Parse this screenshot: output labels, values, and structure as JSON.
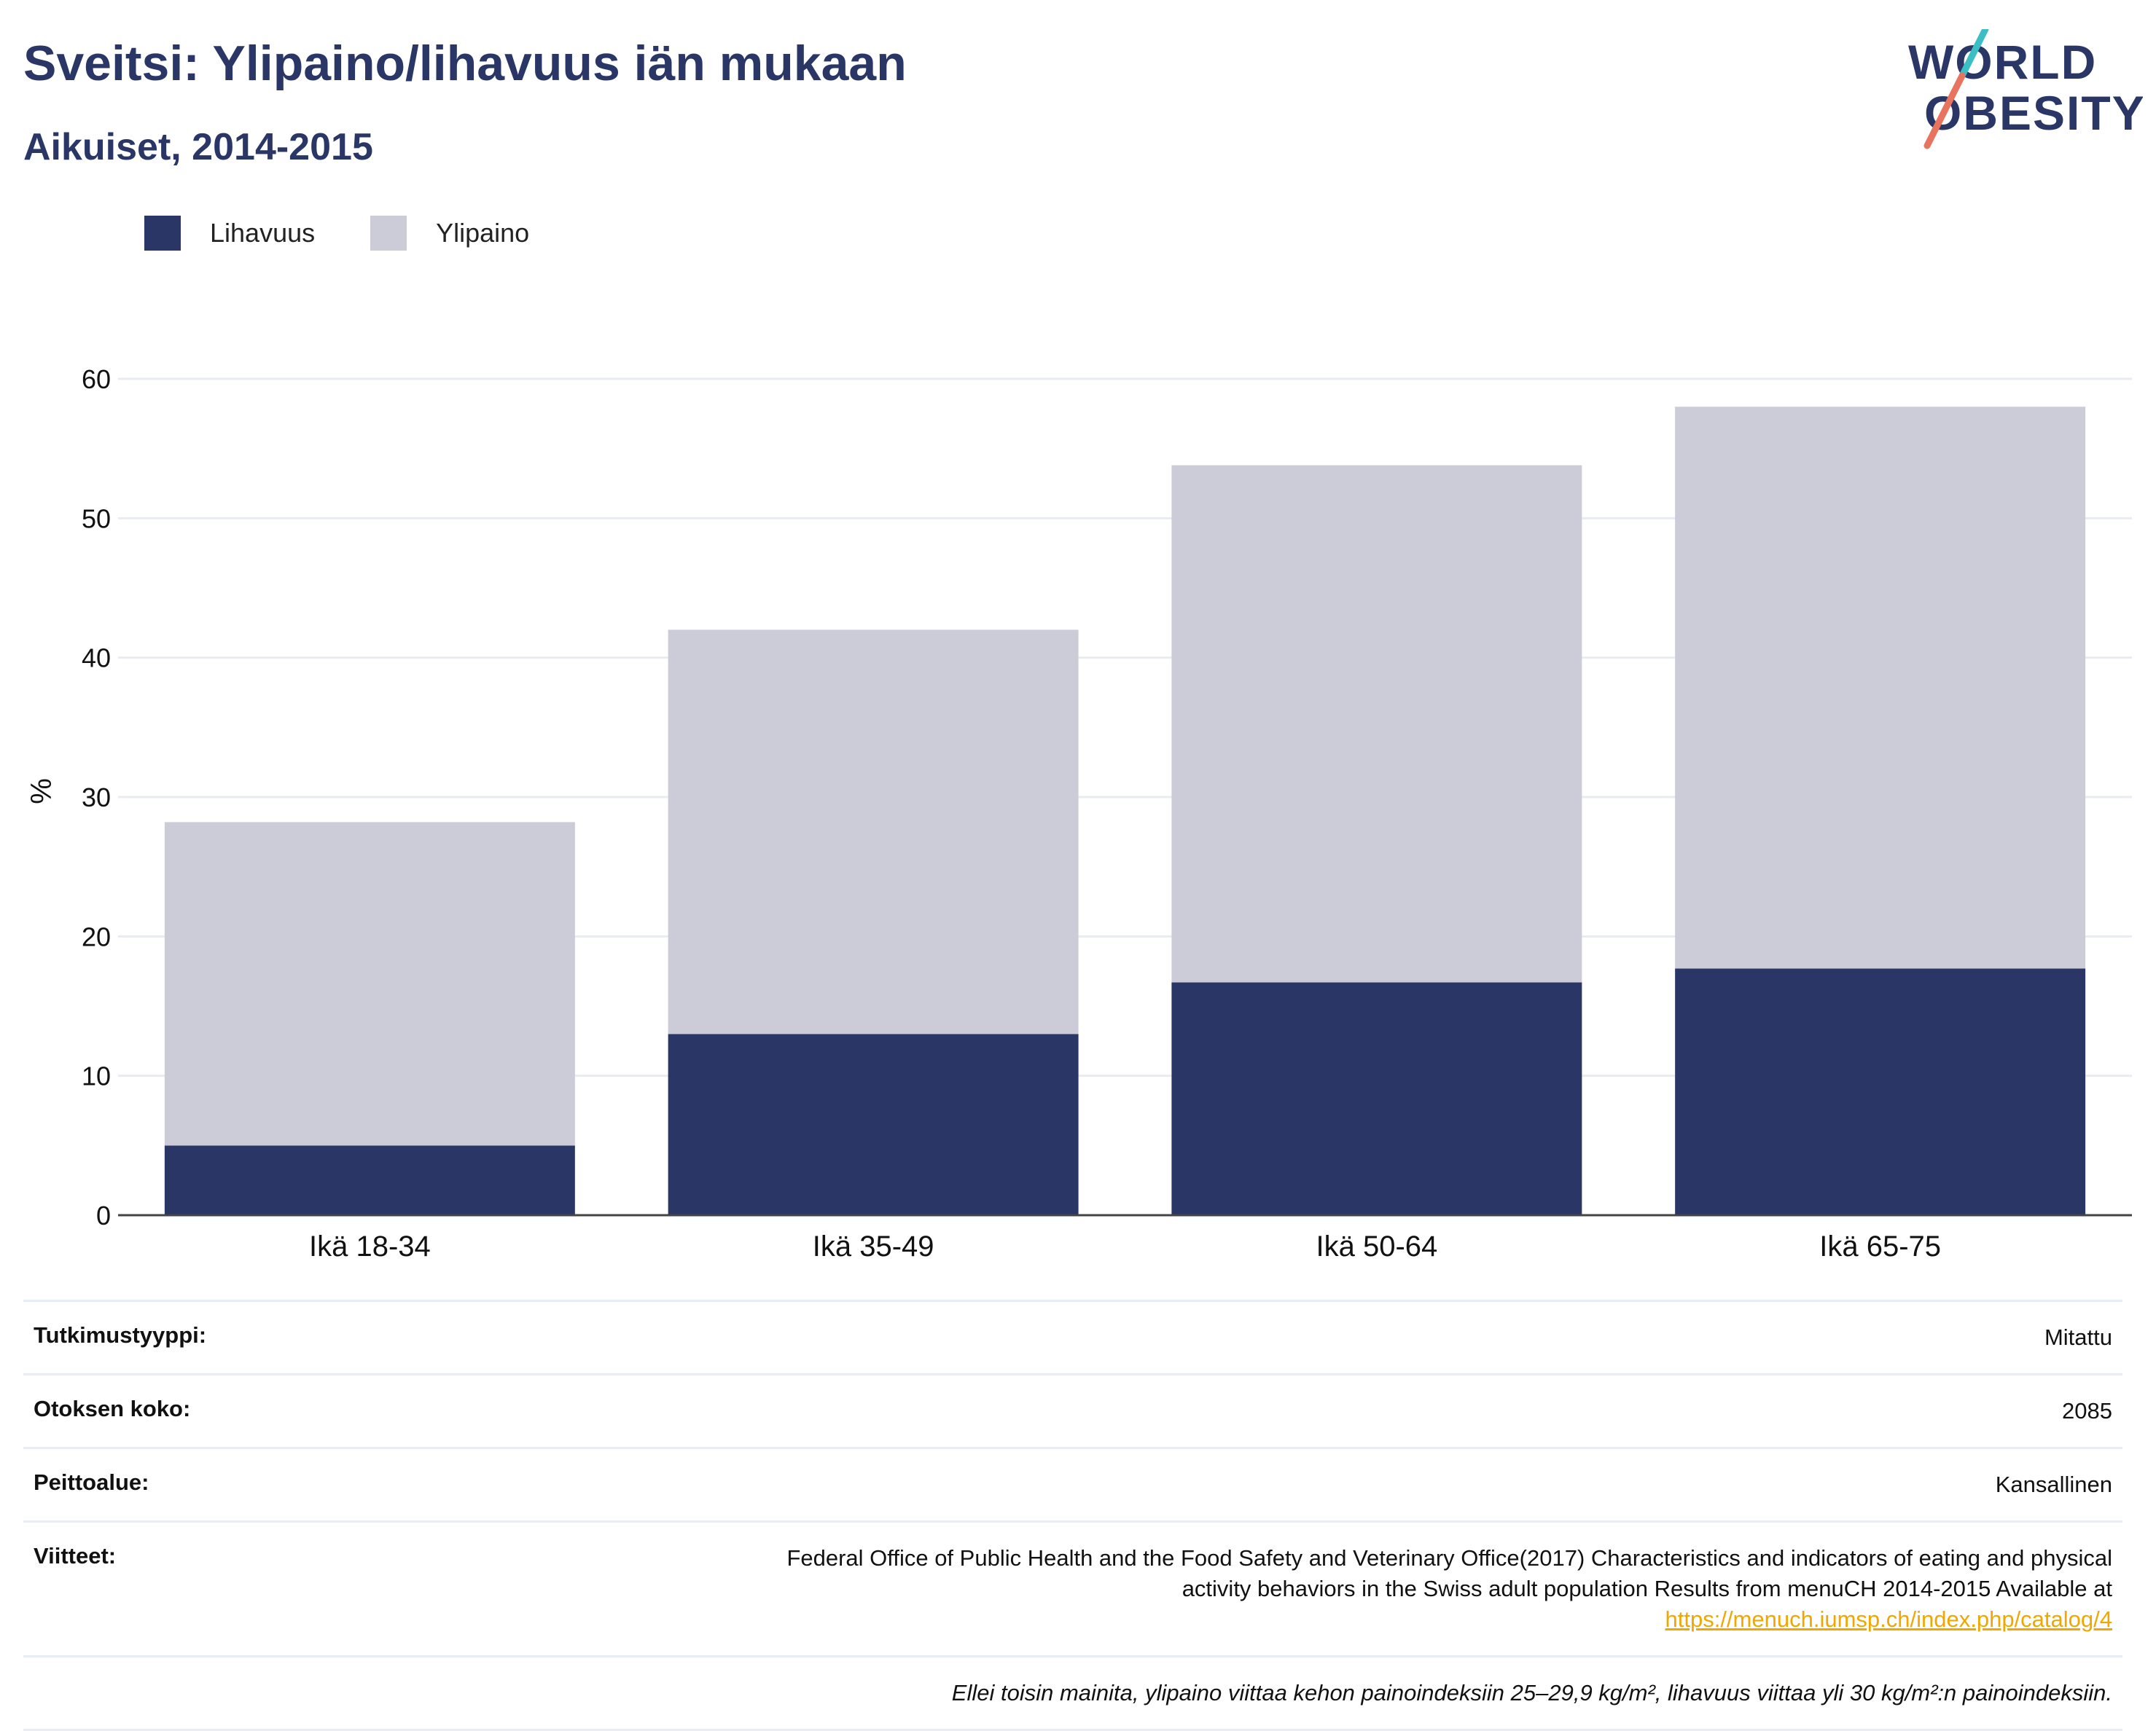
{
  "title": "Sveitsi: Ylipaino/lihavuus iän mukaan",
  "subtitle": "Aikuiset, 2014-2015",
  "logo": {
    "line1": "WORLD",
    "line2": "OBESITY"
  },
  "legend": [
    {
      "label": "Lihavuus",
      "color": "#2a3766"
    },
    {
      "label": "Ylipaino",
      "color": "#cbccd8"
    }
  ],
  "chart_data": {
    "type": "bar",
    "stacked": true,
    "categories": [
      "Ikä 18-34",
      "Ikä 35-49",
      "Ikä 50-64",
      "Ikä 65-75"
    ],
    "series": [
      {
        "name": "Lihavuus",
        "values": [
          5.0,
          13.0,
          16.7,
          17.7
        ],
        "color": "#2a3766"
      },
      {
        "name": "Ylipaino",
        "values": [
          23.2,
          29.0,
          37.1,
          40.3
        ],
        "color": "#cbccd8"
      }
    ],
    "ylabel": "%",
    "ylim": [
      0,
      60
    ],
    "yticks": [
      "0",
      "10",
      "20",
      "30",
      "40",
      "50",
      "60"
    ],
    "grid": true,
    "legend_position": "top-left"
  },
  "meta": {
    "study_type": {
      "label": "Tutkimustyyppi:",
      "value": "Mitattu"
    },
    "sample_size": {
      "label": "Otoksen koko:",
      "value": "2085"
    },
    "coverage": {
      "label": "Peittoalue:",
      "value": "Kansallinen"
    },
    "references": {
      "label": "Viitteet:",
      "line1": "Federal Office of Public Health and the Food Safety and Veterinary Office(2017) Characteristics and indicators of eating and physical",
      "line2": "activity behaviors in the Swiss adult population Results from menuCH 2014-2015 Available at",
      "link": "https://menuch.iumsp.ch/index.php/catalog/4"
    },
    "note": "Ellei toisin mainita, ylipaino viittaa kehon painoindeksiin 25–29,9 kg/m², lihavuus viittaa yli 30 kg/m²:n painoindeksiin."
  }
}
